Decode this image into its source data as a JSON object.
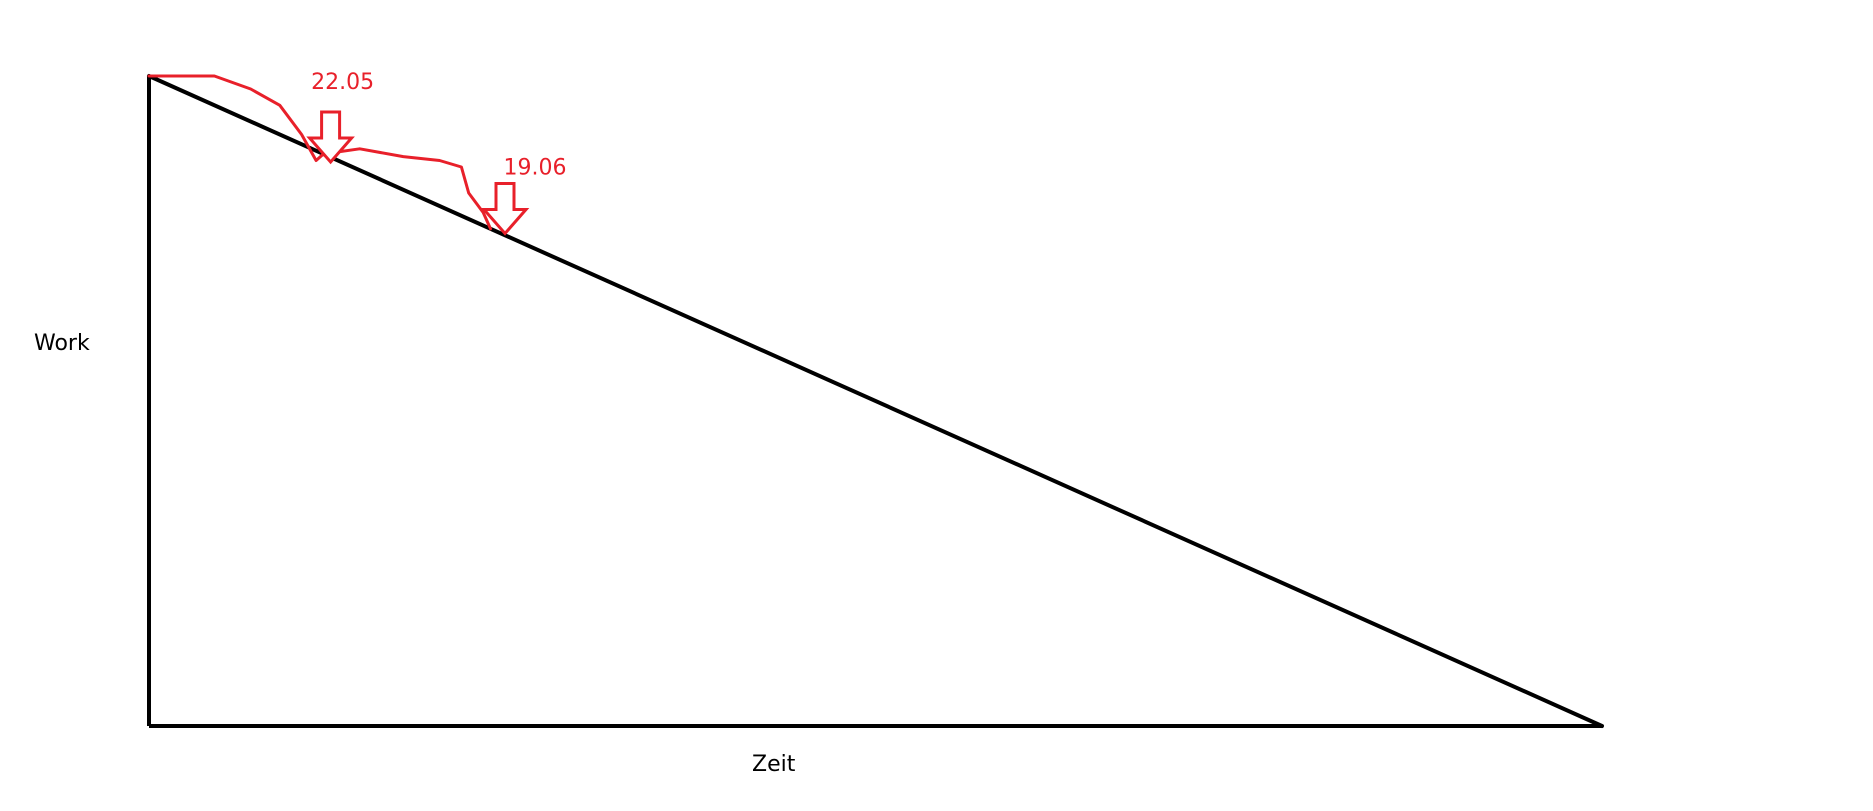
{
  "chart_data": {
    "type": "line",
    "title": "",
    "xlabel": "Zeit",
    "ylabel": "Work",
    "series": [
      {
        "values": [
          {
            "x": 0.0,
            "y": 1.0
          },
          {
            "x": 1.0,
            "y": 0.0
          }
        ]
      },
      {
        "values": [
          {
            "x": 0.0,
            "y": 1.0
          },
          {
            "x": 0.045,
            "y": 1.0
          },
          {
            "x": 0.07,
            "y": 0.98
          },
          {
            "x": 0.09,
            "y": 0.955
          },
          {
            "x": 0.105,
            "y": 0.91
          },
          {
            "x": 0.115,
            "y": 0.87
          },
          {
            "x": 0.12,
            "y": 0.88
          },
          {
            "x": 0.145,
            "y": 0.888
          },
          {
            "x": 0.175,
            "y": 0.876
          },
          {
            "x": 0.2,
            "y": 0.87
          },
          {
            "x": 0.215,
            "y": 0.86
          },
          {
            "x": 0.22,
            "y": 0.82
          },
          {
            "x": 0.23,
            "y": 0.79
          },
          {
            "x": 0.235,
            "y": 0.765
          }
        ]
      }
    ],
    "annotations": [
      {
        "label": "22.05",
        "x": 0.125,
        "y": 0.88
      },
      {
        "label": "19.06",
        "x": 0.245,
        "y": 0.77
      }
    ],
    "xlim": [
      0,
      1
    ],
    "ylim": [
      0,
      1
    ],
    "grid": false,
    "colors": {
      "axis": "#000000",
      "trend": "#000000",
      "actual": "#e8202a",
      "annotation": "#e8202a"
    }
  }
}
